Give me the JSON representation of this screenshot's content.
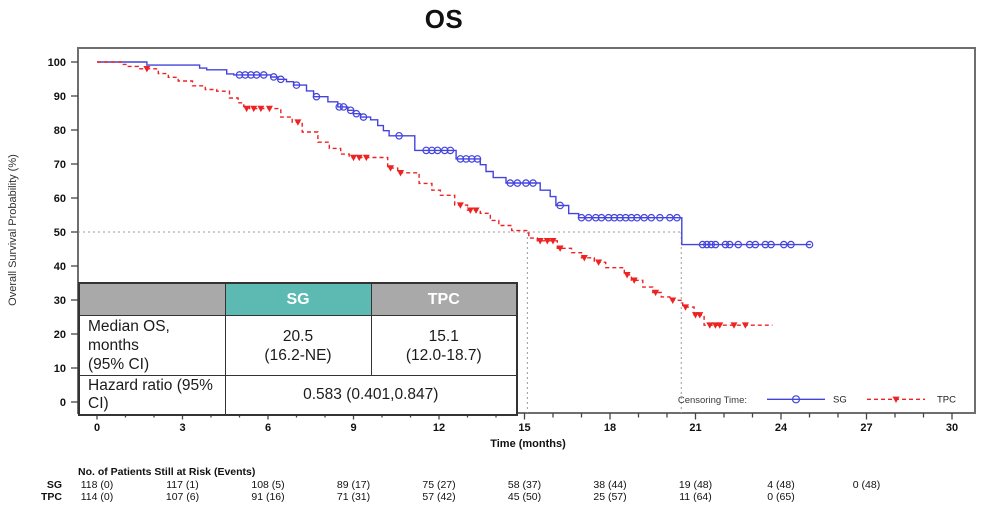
{
  "title": "OS",
  "y_axis_label": "Overall Survival Probability (%)",
  "x_axis_label": "Time (months)",
  "colors": {
    "sg": "#4444dd",
    "tpc": "#ee2222",
    "teal_header": "#5cbab2",
    "gray_header": "#a9a9a9",
    "frame": "#6e6e6e",
    "ref_line": "#999999",
    "tick": "#444444",
    "text": "#111111"
  },
  "legend": {
    "prefix": "Censoring Time:",
    "sg_label": "SG",
    "tpc_label": "TPC"
  },
  "overlay_table": {
    "col_headers": [
      "",
      "SG",
      "TPC"
    ],
    "median_row": {
      "label_line1": "Median OS, months",
      "label_line2": "(95% CI)",
      "sg_line1": "20.5",
      "sg_line2": "(16.2-NE)",
      "tpc_line1": "15.1",
      "tpc_line2": "(12.0-18.7)"
    },
    "hr_row": {
      "label": "Hazard ratio (95% CI)",
      "value": "0.583 (0.401,0.847)"
    }
  },
  "risk_table": {
    "title": "No. of Patients Still at Risk (Events)",
    "times": [
      0,
      3,
      6,
      9,
      12,
      15,
      18,
      21,
      24,
      27
    ],
    "rows": [
      {
        "label": "SG",
        "values": [
          "118 (0)",
          "117 (1)",
          "108 (5)",
          "89 (17)",
          "75 (27)",
          "58 (37)",
          "38 (44)",
          "19 (48)",
          "4 (48)",
          "0 (48)"
        ]
      },
      {
        "label": "TPC",
        "values": [
          "114 (0)",
          "107 (6)",
          "91 (16)",
          "71 (31)",
          "57 (42)",
          "45 (50)",
          "25 (57)",
          "11 (64)",
          "0 (65)"
        ]
      }
    ]
  },
  "chart_data": {
    "type": "line",
    "subtype": "kaplan-meier-step",
    "title": "OS",
    "xlabel": "Time (months)",
    "ylabel": "Overall Survival Probability (%)",
    "xlim": [
      0,
      30
    ],
    "ylim": [
      0,
      100
    ],
    "xticks": [
      0,
      3,
      6,
      9,
      12,
      15,
      18,
      21,
      24,
      27,
      30
    ],
    "yticks": [
      0,
      10,
      20,
      30,
      40,
      50,
      60,
      70,
      80,
      90,
      100
    ],
    "grid": false,
    "legend_position": "inside-bottom-right",
    "reference_lines": {
      "horizontal_pct": 50,
      "h50_end_t": 20.5,
      "v_median_tpc_t": 15.1,
      "v_median_sg_t": 20.5
    },
    "median_os": {
      "SG": "20.5 (16.2-NE)",
      "TPC": "15.1 (12.0-18.7)"
    },
    "hazard_ratio": "0.583 (0.401,0.847)",
    "series": [
      {
        "name": "SG",
        "key": "sg",
        "line": "solid",
        "marker": "circle",
        "end_t": 25.05,
        "steps": [
          [
            0,
            100
          ],
          [
            1.75,
            99.1
          ],
          [
            3.6,
            98.2
          ],
          [
            3.85,
            97.7
          ],
          [
            4.55,
            96.5
          ],
          [
            4.8,
            96.2
          ],
          [
            6.1,
            95.6
          ],
          [
            6.35,
            94.9
          ],
          [
            6.65,
            94.2
          ],
          [
            6.9,
            93.2
          ],
          [
            7.35,
            91.5
          ],
          [
            7.6,
            89.8
          ],
          [
            8.1,
            88.3
          ],
          [
            8.45,
            86.8
          ],
          [
            8.8,
            85.8
          ],
          [
            9.0,
            84.8
          ],
          [
            9.25,
            83.8
          ],
          [
            9.6,
            83.0
          ],
          [
            9.85,
            81.3
          ],
          [
            10.05,
            79.8
          ],
          [
            10.25,
            78.3
          ],
          [
            11.15,
            74.0
          ],
          [
            12.6,
            71.5
          ],
          [
            13.45,
            69.8
          ],
          [
            13.65,
            67.8
          ],
          [
            13.9,
            66.0
          ],
          [
            14.35,
            64.4
          ],
          [
            15.55,
            62.3
          ],
          [
            15.9,
            60.4
          ],
          [
            16.1,
            57.8
          ],
          [
            16.55,
            55.4
          ],
          [
            16.9,
            54.2
          ],
          [
            20.52,
            46.3
          ]
        ],
        "censors": [
          [
            5.0,
            96.2
          ],
          [
            5.2,
            96.2
          ],
          [
            5.4,
            96.2
          ],
          [
            5.6,
            96.2
          ],
          [
            5.85,
            96.2
          ],
          [
            6.2,
            95.6
          ],
          [
            6.45,
            94.9
          ],
          [
            7.0,
            93.2
          ],
          [
            7.7,
            89.8
          ],
          [
            8.5,
            86.8
          ],
          [
            8.65,
            86.8
          ],
          [
            8.9,
            85.8
          ],
          [
            9.1,
            84.8
          ],
          [
            9.35,
            83.8
          ],
          [
            10.6,
            78.3
          ],
          [
            11.55,
            74
          ],
          [
            11.75,
            74
          ],
          [
            11.95,
            74
          ],
          [
            12.2,
            74
          ],
          [
            12.4,
            74
          ],
          [
            12.75,
            71.5
          ],
          [
            12.95,
            71.5
          ],
          [
            13.15,
            71.5
          ],
          [
            13.35,
            71.5
          ],
          [
            14.5,
            64.4
          ],
          [
            14.75,
            64.4
          ],
          [
            15.05,
            64.4
          ],
          [
            15.3,
            64.4
          ],
          [
            16.25,
            57.8
          ],
          [
            17.0,
            54.2
          ],
          [
            17.25,
            54.2
          ],
          [
            17.5,
            54.2
          ],
          [
            17.7,
            54.2
          ],
          [
            17.95,
            54.2
          ],
          [
            18.15,
            54.2
          ],
          [
            18.35,
            54.2
          ],
          [
            18.55,
            54.2
          ],
          [
            18.75,
            54.2
          ],
          [
            18.95,
            54.2
          ],
          [
            19.2,
            54.2
          ],
          [
            19.45,
            54.2
          ],
          [
            19.75,
            54.2
          ],
          [
            20.1,
            54.2
          ],
          [
            20.35,
            54.2
          ],
          [
            21.25,
            46.3
          ],
          [
            21.4,
            46.3
          ],
          [
            21.55,
            46.3
          ],
          [
            21.7,
            46.3
          ],
          [
            22.05,
            46.3
          ],
          [
            22.2,
            46.3
          ],
          [
            22.5,
            46.3
          ],
          [
            22.9,
            46.3
          ],
          [
            23.1,
            46.3
          ],
          [
            23.45,
            46.3
          ],
          [
            23.65,
            46.3
          ],
          [
            24.1,
            46.3
          ],
          [
            24.35,
            46.3
          ],
          [
            25.0,
            46.3
          ]
        ]
      },
      {
        "name": "TPC",
        "key": "tpc",
        "line": "dashed",
        "marker": "triangle-down",
        "end_t": 23.7,
        "steps": [
          [
            0,
            100
          ],
          [
            0.85,
            99.3
          ],
          [
            1.1,
            98.7
          ],
          [
            1.45,
            98.0
          ],
          [
            2.15,
            96.6
          ],
          [
            2.5,
            95.5
          ],
          [
            2.85,
            94.4
          ],
          [
            3.35,
            93.0
          ],
          [
            3.8,
            91.9
          ],
          [
            4.2,
            91.4
          ],
          [
            4.65,
            89.4
          ],
          [
            4.95,
            88.0
          ],
          [
            5.15,
            86.9
          ],
          [
            5.35,
            86.3
          ],
          [
            6.45,
            83.8
          ],
          [
            6.85,
            82.3
          ],
          [
            7.2,
            79.4
          ],
          [
            7.75,
            76.4
          ],
          [
            8.15,
            74.6
          ],
          [
            8.55,
            72.9
          ],
          [
            8.85,
            71.9
          ],
          [
            10.2,
            68.8
          ],
          [
            10.55,
            67.4
          ],
          [
            11.3,
            64.3
          ],
          [
            11.75,
            62.3
          ],
          [
            12.05,
            60.8
          ],
          [
            12.55,
            57.9
          ],
          [
            13.0,
            56.4
          ],
          [
            13.45,
            55.5
          ],
          [
            13.8,
            53.4
          ],
          [
            14.1,
            51.9
          ],
          [
            14.55,
            50.4
          ],
          [
            15.15,
            48.2
          ],
          [
            15.45,
            47.4
          ],
          [
            16.15,
            45.2
          ],
          [
            16.65,
            43.9
          ],
          [
            17.0,
            42.4
          ],
          [
            17.45,
            41.1
          ],
          [
            17.85,
            39.5
          ],
          [
            18.5,
            37.4
          ],
          [
            18.75,
            35.8
          ],
          [
            19.15,
            33.8
          ],
          [
            19.5,
            32.2
          ],
          [
            19.8,
            30.9
          ],
          [
            20.1,
            29.9
          ],
          [
            20.55,
            27.9
          ],
          [
            20.95,
            25.6
          ],
          [
            21.3,
            22.6
          ]
        ],
        "censors": [
          [
            1.75,
            98.0
          ],
          [
            5.25,
            86.3
          ],
          [
            5.5,
            86.3
          ],
          [
            5.75,
            86.3
          ],
          [
            6.05,
            86.3
          ],
          [
            7.05,
            82.3
          ],
          [
            9.0,
            71.9
          ],
          [
            9.2,
            71.9
          ],
          [
            9.45,
            71.9
          ],
          [
            10.3,
            68.8
          ],
          [
            10.65,
            67.4
          ],
          [
            12.75,
            57.9
          ],
          [
            13.1,
            56.4
          ],
          [
            13.3,
            56.4
          ],
          [
            15.55,
            47.4
          ],
          [
            15.8,
            47.4
          ],
          [
            16.0,
            47.4
          ],
          [
            16.25,
            45.2
          ],
          [
            17.1,
            42.4
          ],
          [
            17.6,
            41.1
          ],
          [
            18.6,
            37.4
          ],
          [
            18.85,
            35.8
          ],
          [
            19.6,
            32.2
          ],
          [
            20.2,
            29.9
          ],
          [
            20.65,
            27.9
          ],
          [
            21.0,
            25.6
          ],
          [
            21.15,
            25.6
          ],
          [
            21.5,
            22.6
          ],
          [
            21.7,
            22.6
          ],
          [
            21.85,
            22.6
          ],
          [
            22.35,
            22.6
          ],
          [
            22.75,
            22.6
          ]
        ]
      }
    ]
  }
}
